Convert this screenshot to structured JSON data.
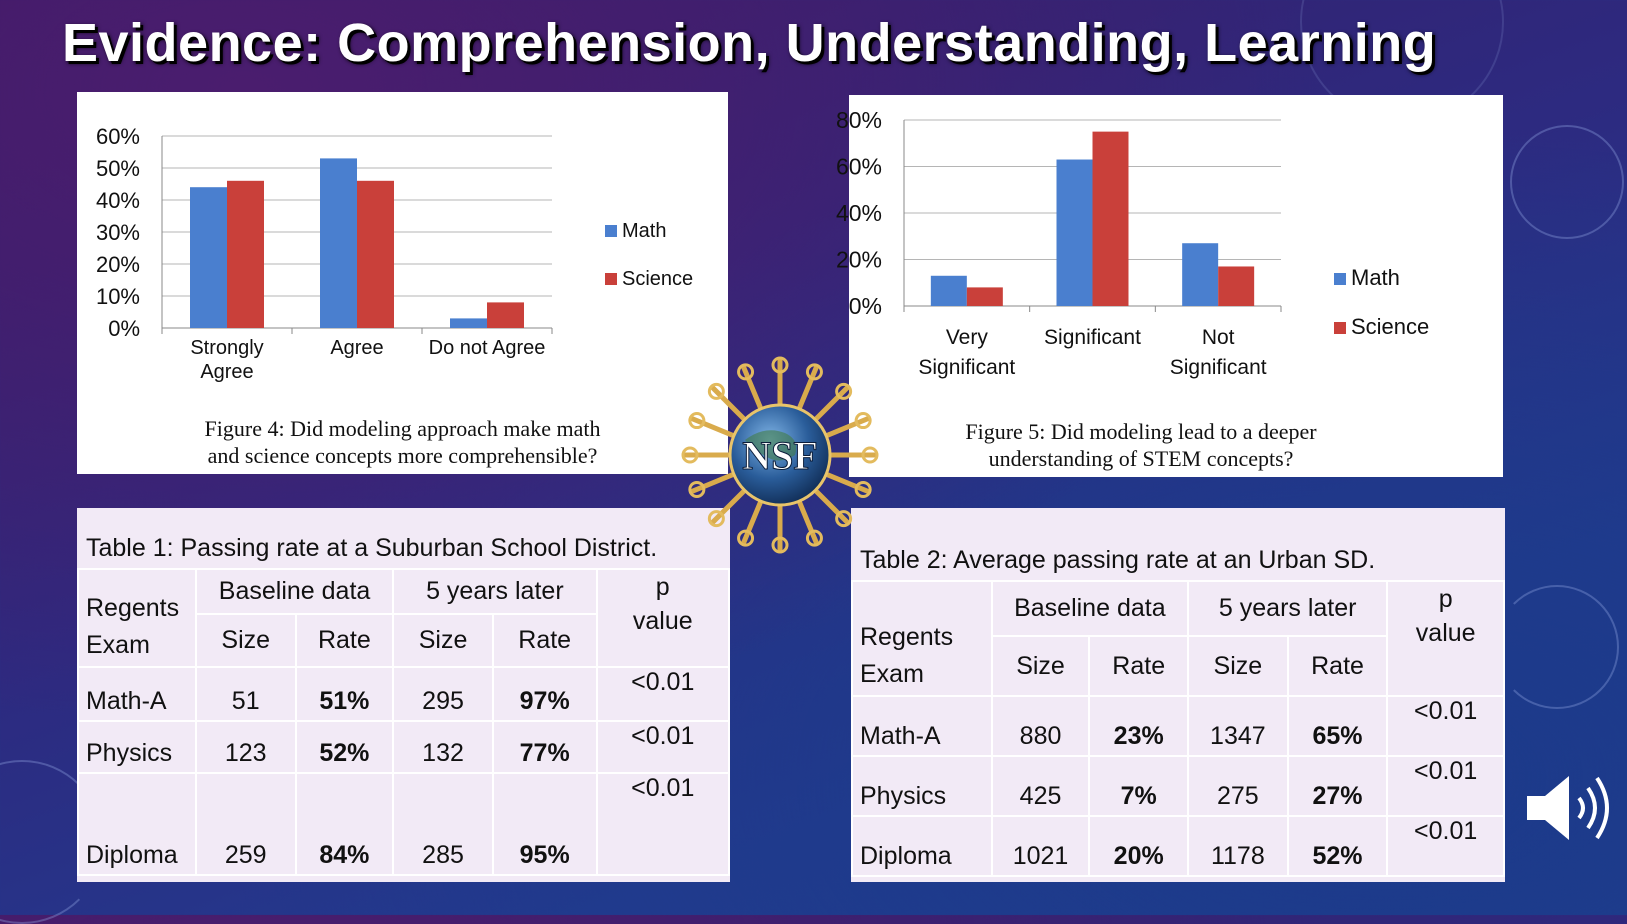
{
  "slide": {
    "title": "Evidence: Comprehension, Understanding, Learning"
  },
  "colors": {
    "math": "#4a7fcf",
    "science": "#c9403a"
  },
  "chart_data": [
    {
      "type": "bar",
      "title": "Figure 4: Did modeling approach make math and science concepts more comprehensible?",
      "caption_lines": [
        "Figure 4: Did modeling approach make math",
        "and science  concepts more comprehensible?"
      ],
      "categories": [
        "Strongly Agree",
        "Agree",
        "Do not Agree"
      ],
      "category_lines": [
        [
          "Strongly",
          "Agree"
        ],
        [
          "Agree"
        ],
        [
          "Do not Agree"
        ]
      ],
      "series": [
        {
          "name": "Math",
          "values": [
            44,
            53,
            3
          ]
        },
        {
          "name": "Science",
          "values": [
            46,
            46,
            8
          ]
        }
      ],
      "yticks": [
        "0%",
        "10%",
        "20%",
        "30%",
        "40%",
        "50%",
        "60%"
      ],
      "ylim": [
        0,
        60
      ],
      "xlabel": "",
      "ylabel": "",
      "legend": "right"
    },
    {
      "type": "bar",
      "title": "Figure 5: Did modeling lead to a deeper understanding of STEM concepts?",
      "caption_lines": [
        "Figure 5: Did modeling lead to a deeper",
        "understanding of STEM concepts?"
      ],
      "categories": [
        "Very Significant",
        "Significant",
        "Not Significant"
      ],
      "category_lines": [
        [
          "Very",
          "Significant"
        ],
        [
          "Significant"
        ],
        [
          "Not",
          "Significant"
        ]
      ],
      "series": [
        {
          "name": "Math",
          "values": [
            13,
            63,
            27
          ]
        },
        {
          "name": "Science",
          "values": [
            8,
            75,
            17
          ]
        }
      ],
      "yticks": [
        "0%",
        "20%",
        "40%",
        "60%",
        "80%"
      ],
      "ylim": [
        0,
        80
      ],
      "xlabel": "",
      "ylabel": "",
      "legend": "right"
    }
  ],
  "table1": {
    "caption": "Table 1: Passing rate at a Suburban School District.",
    "h_exam": [
      "Regents",
      "Exam"
    ],
    "h_baseline": "Baseline data",
    "h_later": "5 years later",
    "h_p": [
      "p",
      "value"
    ],
    "h_size": "Size",
    "h_rate": "Rate",
    "rows": [
      {
        "exam": "Math-A",
        "b_size": "51",
        "b_rate": "51%",
        "l_size": "295",
        "l_rate": "97%",
        "p": "<0.01"
      },
      {
        "exam": "Physics",
        "b_size": "123",
        "b_rate": "52%",
        "l_size": "132",
        "l_rate": "77%",
        "p": "<0.01"
      },
      {
        "exam": "Diploma",
        "b_size": "259",
        "b_rate": "84%",
        "l_size": "285",
        "l_rate": "95%",
        "p": "<0.01"
      }
    ]
  },
  "table2": {
    "caption": "Table 2: Average passing rate at an Urban SD.",
    "h_exam": [
      "Regents",
      "Exam"
    ],
    "h_baseline": "Baseline data",
    "h_later": "5 years later",
    "h_p": [
      "p",
      "value"
    ],
    "h_size": "Size",
    "h_rate": "Rate",
    "rows": [
      {
        "exam": "Math-A",
        "b_size": "880",
        "b_rate": "23%",
        "l_size": "1347",
        "l_rate": "65%",
        "p": "<0.01"
      },
      {
        "exam": "Physics",
        "b_size": "425",
        "b_rate": "7%",
        "l_size": "275",
        "l_rate": "27%",
        "p": "<0.01"
      },
      {
        "exam": "Diploma",
        "b_size": "1021",
        "b_rate": "20%",
        "l_size": "1178",
        "l_rate": "52%",
        "p": "<0.01"
      }
    ]
  },
  "logo": {
    "text": "NSF"
  },
  "icons": {
    "speaker": "speaker-icon"
  }
}
